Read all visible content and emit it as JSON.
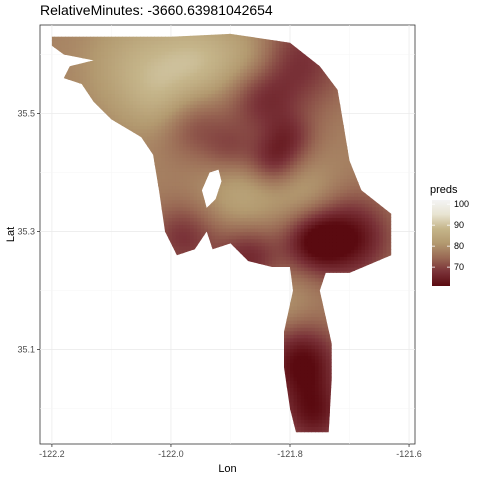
{
  "chart_data": {
    "type": "heatmap",
    "title": "RelativeMinutes: -3660.63981042654",
    "xlabel": "Lon",
    "ylabel": "Lat",
    "xlim": [
      -122.22,
      -121.59
    ],
    "ylim": [
      34.94,
      35.65
    ],
    "x_ticks": [
      -122.2,
      -122.0,
      -121.8,
      -121.6
    ],
    "x_tick_labels": [
      "-122.2",
      "-122.0",
      "-121.8",
      "-121.6"
    ],
    "y_ticks": [
      35.1,
      35.3,
      35.5
    ],
    "y_tick_labels": [
      "35.1",
      "35.3",
      "35.5"
    ],
    "grid": true,
    "legend": {
      "title": "preds",
      "placement": "right",
      "min": 61,
      "max": 102,
      "breaks": [
        70,
        80,
        90,
        100
      ],
      "labels": [
        "70",
        "80",
        "90",
        "100"
      ],
      "colors": [
        "#5a0a10",
        "#7a3238",
        "#9a6a55",
        "#b39a70",
        "#c5b58a",
        "#e8e4d2",
        "#f4f4f4"
      ]
    },
    "region_outline": [
      [
        -122.2,
        35.63
      ],
      [
        -122.0,
        35.63
      ],
      [
        -121.9,
        35.635
      ],
      [
        -121.8,
        35.62
      ],
      [
        -121.75,
        35.58
      ],
      [
        -121.72,
        35.54
      ],
      [
        -121.71,
        35.48
      ],
      [
        -121.7,
        35.42
      ],
      [
        -121.68,
        35.37
      ],
      [
        -121.63,
        35.33
      ],
      [
        -121.63,
        35.26
      ],
      [
        -121.7,
        35.23
      ],
      [
        -121.74,
        35.23
      ],
      [
        -121.75,
        35.2
      ],
      [
        -121.73,
        35.11
      ],
      [
        -121.73,
        35.05
      ],
      [
        -121.735,
        34.96
      ],
      [
        -121.79,
        34.96
      ],
      [
        -121.8,
        35.0
      ],
      [
        -121.81,
        35.07
      ],
      [
        -121.81,
        35.13
      ],
      [
        -121.795,
        35.2
      ],
      [
        -121.8,
        35.24
      ],
      [
        -121.83,
        35.24
      ],
      [
        -121.87,
        35.25
      ],
      [
        -121.9,
        35.28
      ],
      [
        -121.93,
        35.27
      ],
      [
        -121.94,
        35.3
      ],
      [
        -121.96,
        35.27
      ],
      [
        -121.99,
        35.26
      ],
      [
        -122.01,
        35.3
      ],
      [
        -122.02,
        35.37
      ],
      [
        -122.03,
        35.43
      ],
      [
        -122.05,
        35.46
      ],
      [
        -122.1,
        35.49
      ],
      [
        -122.13,
        35.52
      ],
      [
        -122.15,
        35.55
      ],
      [
        -122.18,
        35.56
      ],
      [
        -122.17,
        35.58
      ],
      [
        -122.13,
        35.59
      ],
      [
        -122.18,
        35.6
      ],
      [
        -122.2,
        35.615
      ]
    ],
    "hole_outline": [
      [
        -121.94,
        35.34
      ],
      [
        -121.925,
        35.355
      ],
      [
        -121.915,
        35.385
      ],
      [
        -121.92,
        35.405
      ],
      [
        -121.935,
        35.4
      ],
      [
        -121.948,
        35.37
      ]
    ],
    "base_value": 78,
    "hotspots": [
      {
        "lon": -121.7,
        "lat": 35.29,
        "value": 62,
        "radius": 0.05
      },
      {
        "lon": -121.76,
        "lat": 35.285,
        "value": 65,
        "radius": 0.035
      },
      {
        "lon": -121.78,
        "lat": 35.08,
        "value": 61,
        "radius": 0.045
      },
      {
        "lon": -121.76,
        "lat": 34.99,
        "value": 64,
        "radius": 0.04
      },
      {
        "lon": -121.87,
        "lat": 35.255,
        "value": 66,
        "radius": 0.04
      },
      {
        "lon": -121.98,
        "lat": 35.29,
        "value": 68,
        "radius": 0.04
      },
      {
        "lon": -121.79,
        "lat": 35.59,
        "value": 67,
        "radius": 0.06
      },
      {
        "lon": -121.85,
        "lat": 35.52,
        "value": 70,
        "radius": 0.04
      },
      {
        "lon": -121.83,
        "lat": 35.42,
        "value": 68,
        "radius": 0.03
      },
      {
        "lon": -121.8,
        "lat": 35.46,
        "value": 70,
        "radius": 0.03
      },
      {
        "lon": -121.96,
        "lat": 35.48,
        "value": 71,
        "radius": 0.04
      },
      {
        "lon": -121.9,
        "lat": 35.44,
        "value": 72,
        "radius": 0.03
      },
      {
        "lon": -122.05,
        "lat": 35.58,
        "value": 86,
        "radius": 0.06
      },
      {
        "lon": -121.95,
        "lat": 35.59,
        "value": 87,
        "radius": 0.05
      },
      {
        "lon": -121.86,
        "lat": 35.6,
        "value": 84,
        "radius": 0.04
      },
      {
        "lon": -121.88,
        "lat": 35.36,
        "value": 84,
        "radius": 0.045
      },
      {
        "lon": -121.77,
        "lat": 35.36,
        "value": 83,
        "radius": 0.04
      },
      {
        "lon": -121.82,
        "lat": 35.18,
        "value": 82,
        "radius": 0.04
      },
      {
        "lon": -122.02,
        "lat": 35.52,
        "value": 82,
        "radius": 0.04
      }
    ]
  }
}
